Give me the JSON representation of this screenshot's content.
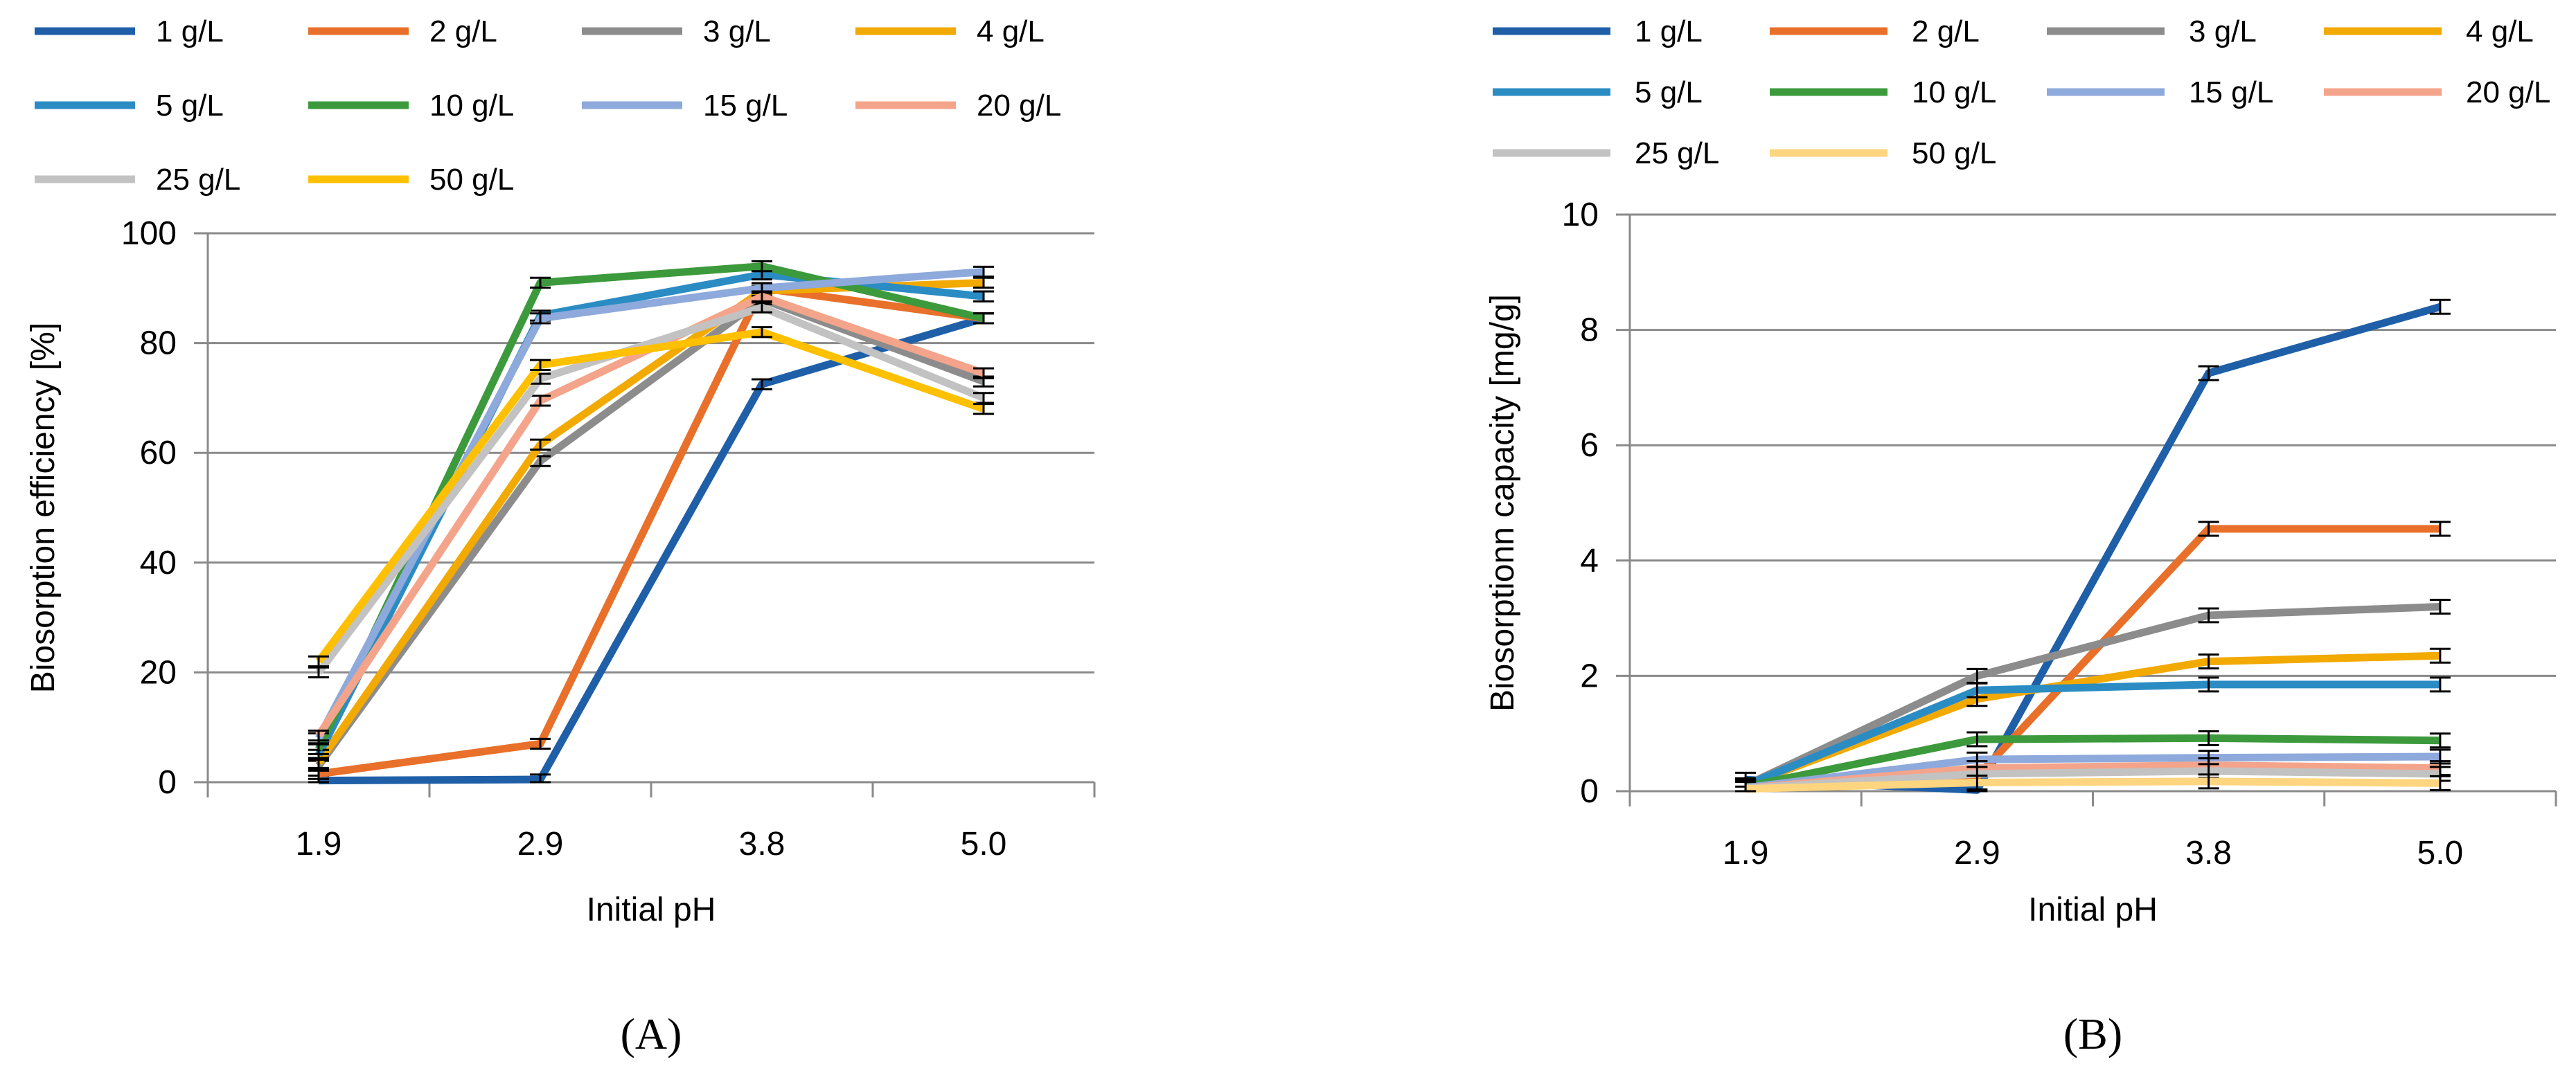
{
  "chart_data": [
    {
      "type": "line",
      "panel_label": "(A)",
      "xlabel": "Initial pH",
      "ylabel": "Biosorption  efficiency  [%]",
      "categories": [
        "1.9",
        "2.9",
        "3.8",
        "5.0"
      ],
      "ylim": [
        0,
        100
      ],
      "yticks": [
        "0",
        "20",
        "40",
        "60",
        "80",
        "100"
      ],
      "grid": true,
      "legend_placement": "top",
      "series": [
        {
          "name": "1 g/L",
          "color": "#1F5FA8",
          "values": [
            0.3,
            0.5,
            72.5,
            84.5
          ]
        },
        {
          "name": "2 g/L",
          "color": "#E8702A",
          "values": [
            1.5,
            7,
            90,
            84.5
          ]
        },
        {
          "name": "3 g/L",
          "color": "#8C8C8C",
          "values": [
            3,
            58.5,
            88,
            73
          ]
        },
        {
          "name": "4 g/L",
          "color": "#F2A900",
          "values": [
            3.5,
            61.5,
            89.5,
            91
          ]
        },
        {
          "name": "5 g/L",
          "color": "#2B8CC4",
          "values": [
            5,
            85,
            92.5,
            88.5
          ]
        },
        {
          "name": "10 g/L",
          "color": "#3C9A3C",
          "values": [
            6,
            91,
            94,
            84.5
          ]
        },
        {
          "name": "15 g/L",
          "color": "#8EA9DB",
          "values": [
            8,
            84.5,
            90,
            93
          ]
        },
        {
          "name": "20 g/L",
          "color": "#F4A48A",
          "values": [
            8.5,
            69.5,
            88.5,
            74.5
          ]
        },
        {
          "name": "25 g/L",
          "color": "#C2C2C2",
          "values": [
            20,
            73.5,
            86.5,
            70
          ]
        },
        {
          "name": "50 g/L",
          "color": "#FFC000",
          "values": [
            22,
            76,
            82,
            68
          ]
        }
      ]
    },
    {
      "type": "line",
      "panel_label": "(B)",
      "xlabel": "Initial pH",
      "ylabel": "Biosorptionn capacity [mg/g]",
      "categories": [
        "1.9",
        "2.9",
        "3.8",
        "5.0"
      ],
      "ylim": [
        0,
        10
      ],
      "yticks": [
        "0",
        "2",
        "4",
        "6",
        "8",
        "10"
      ],
      "grid": true,
      "legend_placement": "top",
      "series": [
        {
          "name": "1 g/L",
          "color": "#1F5FA8",
          "values": [
            0.2,
            0.02,
            7.25,
            8.4
          ]
        },
        {
          "name": "2 g/L",
          "color": "#E8702A",
          "values": [
            0.1,
            0.25,
            4.55,
            4.55
          ]
        },
        {
          "name": "3 g/L",
          "color": "#8C8C8C",
          "values": [
            0.1,
            2.0,
            3.05,
            3.2
          ]
        },
        {
          "name": "4 g/L",
          "color": "#F2A900",
          "values": [
            0.1,
            1.6,
            2.25,
            2.35
          ]
        },
        {
          "name": "5 g/L",
          "color": "#2B8CC4",
          "values": [
            0.1,
            1.75,
            1.85,
            1.85
          ]
        },
        {
          "name": "10 g/L",
          "color": "#3C9A3C",
          "values": [
            0.08,
            0.9,
            0.92,
            0.88
          ]
        },
        {
          "name": "15 g/L",
          "color": "#8EA9DB",
          "values": [
            0.06,
            0.55,
            0.58,
            0.6
          ]
        },
        {
          "name": "20 g/L",
          "color": "#F4A48A",
          "values": [
            0.05,
            0.4,
            0.45,
            0.4
          ]
        },
        {
          "name": "25 g/L",
          "color": "#C2C2C2",
          "values": [
            0.05,
            0.3,
            0.35,
            0.3
          ]
        },
        {
          "name": "50 g/L",
          "color": "#FFD580",
          "values": [
            0.04,
            0.15,
            0.17,
            0.14
          ]
        }
      ]
    }
  ]
}
